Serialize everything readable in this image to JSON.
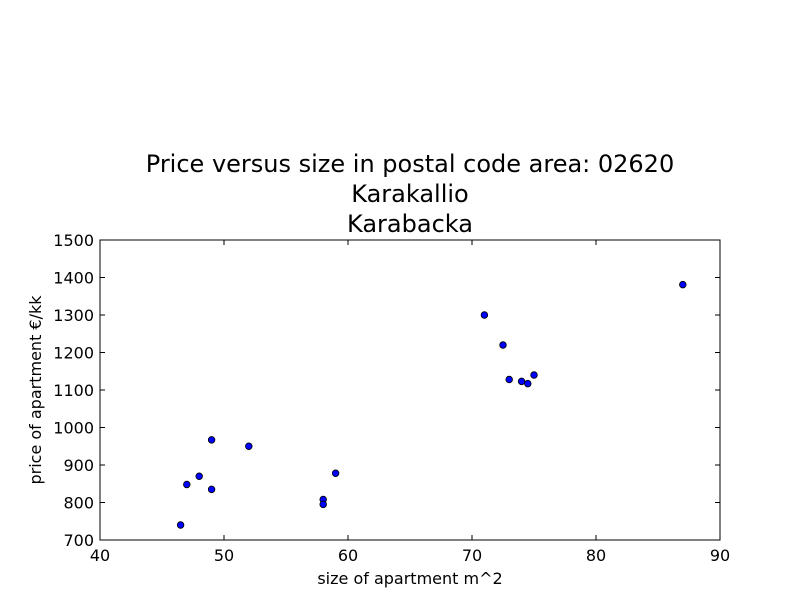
{
  "chart_data": {
    "type": "scatter",
    "title_lines": [
      "Price versus size in postal code area: 02620",
      "Karakallio",
      "Karabacka"
    ],
    "xlabel": "size of apartment m^2",
    "ylabel": "price of apartment €/kk",
    "xlim": [
      40,
      90
    ],
    "ylim": [
      700,
      1500
    ],
    "xticks": [
      "40",
      "50",
      "60",
      "70",
      "80",
      "90"
    ],
    "yticks": [
      "700",
      "800",
      "900",
      "1000",
      "1100",
      "1200",
      "1300",
      "1400",
      "1500"
    ],
    "grid": false,
    "marker_color": "#0000ff",
    "points": [
      {
        "x": 46.5,
        "y": 740
      },
      {
        "x": 47.0,
        "y": 848
      },
      {
        "x": 48.0,
        "y": 870
      },
      {
        "x": 49.0,
        "y": 835
      },
      {
        "x": 49.0,
        "y": 967
      },
      {
        "x": 52.0,
        "y": 950
      },
      {
        "x": 58.0,
        "y": 808
      },
      {
        "x": 58.0,
        "y": 795
      },
      {
        "x": 59.0,
        "y": 878
      },
      {
        "x": 71.0,
        "y": 1300
      },
      {
        "x": 72.5,
        "y": 1220
      },
      {
        "x": 73.0,
        "y": 1128
      },
      {
        "x": 74.0,
        "y": 1123
      },
      {
        "x": 74.5,
        "y": 1117
      },
      {
        "x": 75.0,
        "y": 1140
      },
      {
        "x": 87.0,
        "y": 1381
      }
    ]
  }
}
